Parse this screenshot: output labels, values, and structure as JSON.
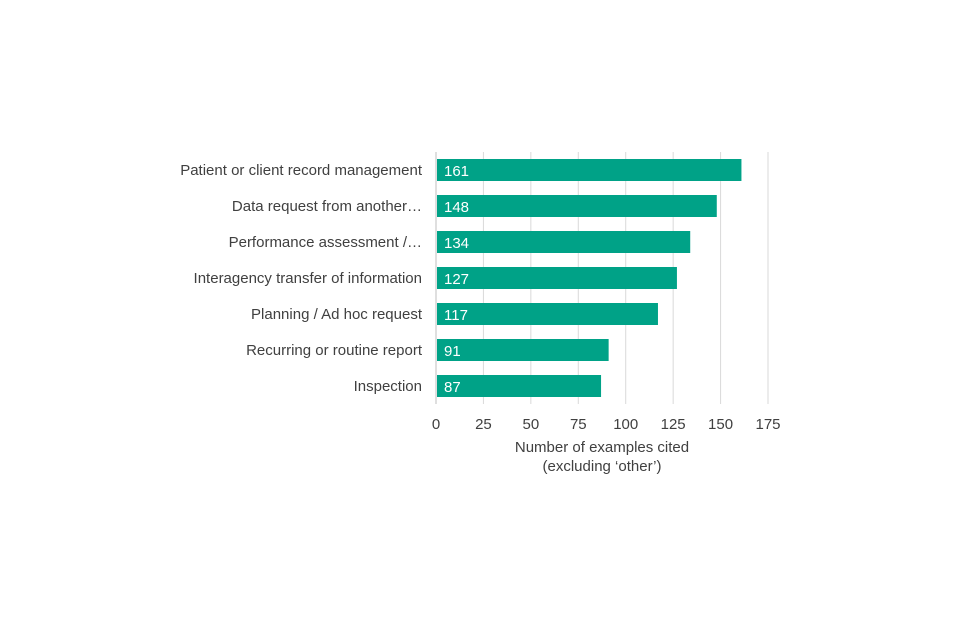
{
  "chart_data": {
    "type": "bar",
    "orientation": "horizontal",
    "categories": [
      "Patient or client record management",
      "Data request from another…",
      "Performance assessment /…",
      "Interagency transfer of information",
      "Planning / Ad hoc request",
      "Recurring or routine report",
      "Inspection"
    ],
    "values": [
      161,
      148,
      134,
      127,
      117,
      91,
      87
    ],
    "xlabel_lines": [
      "Number of examples cited",
      "(excluding ‘other’)"
    ],
    "xlim": [
      0,
      175
    ],
    "xticks": [
      0,
      25,
      50,
      75,
      100,
      125,
      150,
      175
    ],
    "grid": "vertical",
    "data_labels": "inside-left",
    "legend": "none",
    "colors": {
      "bar": "#00a287",
      "bar_label": "#ffffff",
      "text": "#404040",
      "grid": "#d9d9d9",
      "axis": "#bfbfbf"
    }
  }
}
